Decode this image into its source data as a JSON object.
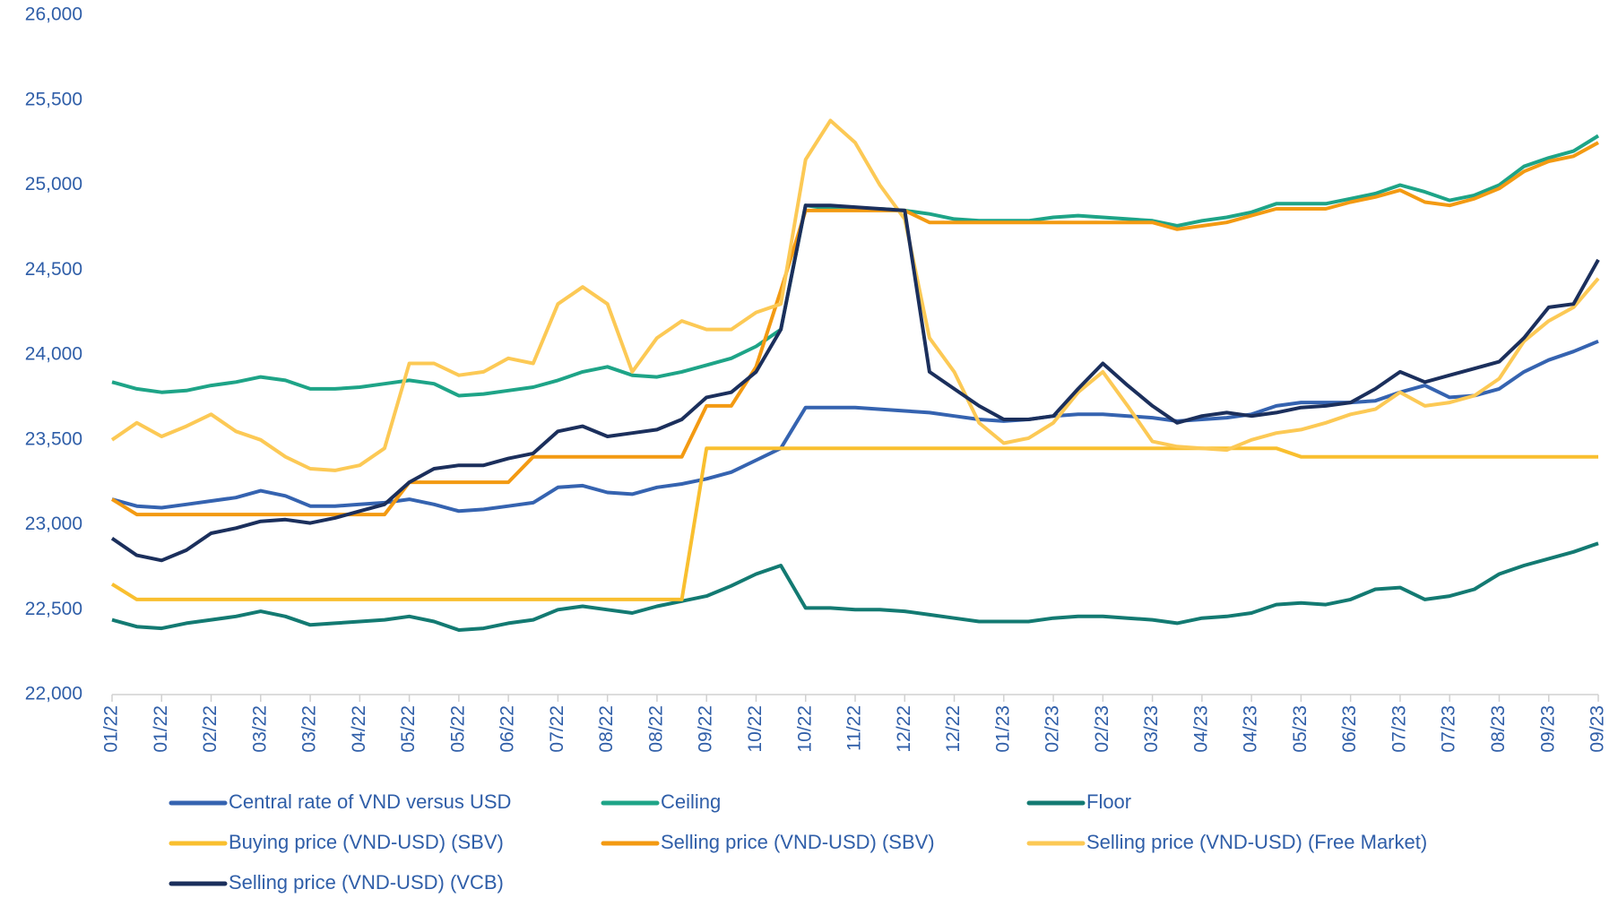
{
  "chart_data": {
    "type": "line",
    "categories": [
      "01/22",
      null,
      "01/22",
      null,
      "02/22",
      null,
      "03/22",
      null,
      "03/22",
      null,
      "04/22",
      null,
      "05/22",
      null,
      "05/22",
      null,
      "06/22",
      null,
      "07/22",
      null,
      "08/22",
      null,
      "08/22",
      null,
      "09/22",
      null,
      "10/22",
      null,
      "10/22",
      null,
      "11/22",
      null,
      "12/22",
      null,
      "12/22",
      null,
      "01/23",
      null,
      "02/23",
      null,
      "02/23",
      null,
      "03/23",
      null,
      "04/23",
      null,
      "04/23",
      null,
      "05/23",
      null,
      "06/23",
      null,
      "07/23",
      null,
      "07/23",
      null,
      "08/23",
      null,
      "09/23",
      null,
      "09/23"
    ],
    "ylim": [
      22000,
      26000
    ],
    "yticks": [
      {
        "value": 22000,
        "label": "22,000"
      },
      {
        "value": 22500,
        "label": "22,500"
      },
      {
        "value": 23000,
        "label": "23,000"
      },
      {
        "value": 23500,
        "label": "23,500"
      },
      {
        "value": 24000,
        "label": "24,000"
      },
      {
        "value": 24500,
        "label": "24,500"
      },
      {
        "value": 25000,
        "label": "25,000"
      },
      {
        "value": 25500,
        "label": "25,500"
      },
      {
        "value": 26000,
        "label": "26,000"
      }
    ],
    "grid": false,
    "legend": "bottom",
    "series": [
      {
        "name": "Central rate of VND versus USD",
        "color": "#3563b0",
        "values": [
          23150,
          23110,
          23100,
          23120,
          23140,
          23160,
          23200,
          23170,
          23110,
          23110,
          23120,
          23130,
          23150,
          23120,
          23080,
          23090,
          23110,
          23130,
          23220,
          23230,
          23190,
          23180,
          23220,
          23240,
          23270,
          23310,
          23380,
          23450,
          23690,
          23690,
          23690,
          23680,
          23670,
          23660,
          23640,
          23620,
          23610,
          23620,
          23640,
          23650,
          23650,
          23640,
          23630,
          23610,
          23620,
          23630,
          23650,
          23700,
          23720,
          23720,
          23720,
          23730,
          23780,
          23820,
          23750,
          23760,
          23800,
          23900,
          23970,
          24020,
          24080
        ]
      },
      {
        "name": "Ceiling",
        "color": "#1ea487",
        "values": [
          23840,
          23800,
          23780,
          23790,
          23820,
          23840,
          23870,
          23850,
          23800,
          23800,
          23810,
          23830,
          23850,
          23830,
          23760,
          23770,
          23790,
          23810,
          23850,
          23900,
          23930,
          23880,
          23870,
          23900,
          23940,
          23980,
          24050,
          24150,
          24880,
          24860,
          24860,
          24860,
          24850,
          24830,
          24800,
          24790,
          24790,
          24790,
          24810,
          24820,
          24810,
          24800,
          24790,
          24760,
          24790,
          24810,
          24840,
          24890,
          24890,
          24890,
          24920,
          24950,
          25000,
          24960,
          24910,
          24940,
          25000,
          25110,
          25160,
          25200,
          25290
        ]
      },
      {
        "name": "Floor",
        "color": "#137a72",
        "values": [
          22440,
          22400,
          22390,
          22420,
          22440,
          22460,
          22490,
          22460,
          22410,
          22420,
          22430,
          22440,
          22460,
          22430,
          22380,
          22390,
          22420,
          22440,
          22500,
          22520,
          22500,
          22480,
          22520,
          22550,
          22580,
          22640,
          22710,
          22760,
          22510,
          22510,
          22500,
          22500,
          22490,
          22470,
          22450,
          22430,
          22430,
          22430,
          22450,
          22460,
          22460,
          22450,
          22440,
          22420,
          22450,
          22460,
          22480,
          22530,
          22540,
          22530,
          22560,
          22620,
          22630,
          22560,
          22580,
          22620,
          22710,
          22760,
          22800,
          22840,
          22890
        ]
      },
      {
        "name": "Buying price (VND-USD) (SBV)",
        "color": "#f9bf2f",
        "values": [
          22650,
          22560,
          22560,
          22560,
          22560,
          22560,
          22560,
          22560,
          22560,
          22560,
          22560,
          22560,
          22560,
          22560,
          22560,
          22560,
          22560,
          22560,
          22560,
          22560,
          22560,
          22560,
          22560,
          22560,
          23450,
          23450,
          23450,
          23450,
          23450,
          23450,
          23450,
          23450,
          23450,
          23450,
          23450,
          23450,
          23450,
          23450,
          23450,
          23450,
          23450,
          23450,
          23450,
          23450,
          23450,
          23450,
          23450,
          23450,
          23400,
          23400,
          23400,
          23400,
          23400,
          23400,
          23400,
          23400,
          23400,
          23400,
          23400,
          23400,
          23400
        ]
      },
      {
        "name": "Selling price (VND-USD) (SBV)",
        "color": "#f39a12",
        "values": [
          23150,
          23060,
          23060,
          23060,
          23060,
          23060,
          23060,
          23060,
          23060,
          23060,
          23060,
          23060,
          23250,
          23250,
          23250,
          23250,
          23250,
          23400,
          23400,
          23400,
          23400,
          23400,
          23400,
          23400,
          23700,
          23700,
          23930,
          24380,
          24850,
          24850,
          24850,
          24850,
          24850,
          24780,
          24780,
          24780,
          24780,
          24780,
          24780,
          24780,
          24780,
          24780,
          24780,
          24740,
          24760,
          24780,
          24820,
          24860,
          24860,
          24860,
          24900,
          24930,
          24970,
          24900,
          24880,
          24920,
          24980,
          25080,
          25140,
          25170,
          25250
        ]
      },
      {
        "name": "Selling price (VND-USD) (Free Market)",
        "color": "#fcc955",
        "values": [
          23500,
          23600,
          23520,
          23580,
          23650,
          23550,
          23500,
          23400,
          23330,
          23320,
          23350,
          23450,
          23950,
          23950,
          23880,
          23900,
          23980,
          23950,
          24300,
          24400,
          24300,
          23900,
          24100,
          24200,
          24150,
          24150,
          24250,
          24300,
          25150,
          25380,
          25250,
          25000,
          24800,
          24100,
          23900,
          23600,
          23480,
          23510,
          23600,
          23780,
          23900,
          23700,
          23490,
          23460,
          23450,
          23440,
          23500,
          23540,
          23560,
          23600,
          23650,
          23680,
          23780,
          23700,
          23720,
          23760,
          23860,
          24080,
          24200,
          24280,
          24450
        ]
      },
      {
        "name": "Selling price (VND-USD) (VCB)",
        "color": "#1b2f5c",
        "values": [
          22920,
          22820,
          22790,
          22850,
          22950,
          22980,
          23020,
          23030,
          23010,
          23040,
          23080,
          23120,
          23250,
          23330,
          23350,
          23350,
          23390,
          23420,
          23550,
          23580,
          23520,
          23540,
          23560,
          23620,
          23750,
          23780,
          23900,
          24150,
          24880,
          24880,
          24870,
          24860,
          24850,
          23900,
          23800,
          23700,
          23620,
          23620,
          23640,
          23800,
          23950,
          23820,
          23700,
          23600,
          23640,
          23660,
          23640,
          23660,
          23690,
          23700,
          23720,
          23800,
          23900,
          23840,
          23880,
          23920,
          23960,
          24100,
          24280,
          24300,
          24560
        ]
      }
    ]
  }
}
